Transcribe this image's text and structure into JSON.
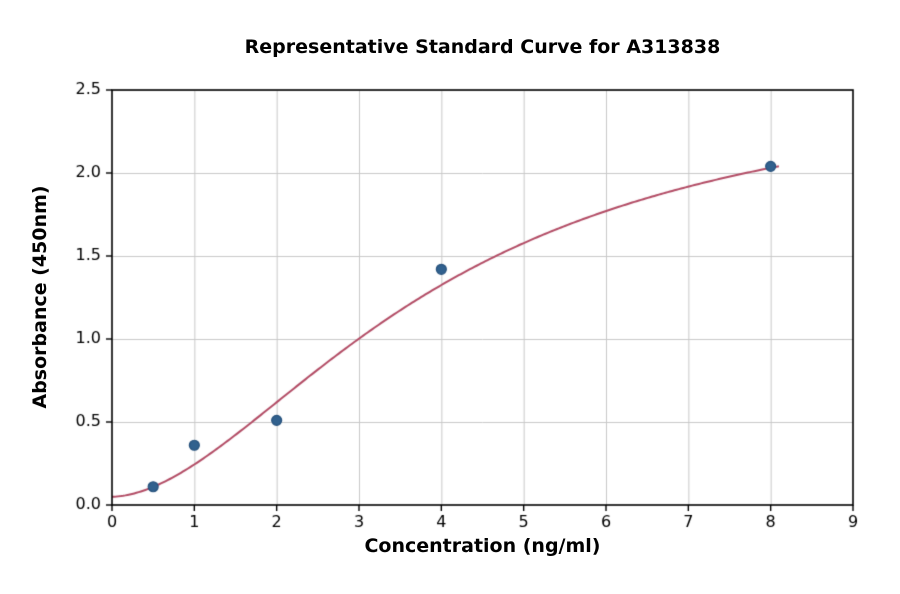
{
  "chart_data": {
    "type": "scatter",
    "title": "Representative Standard Curve for A313838",
    "xlabel": "Concentration (ng/ml)",
    "ylabel": "Absorbance (450nm)",
    "xlim": [
      0,
      9
    ],
    "ylim": [
      0,
      2.5
    ],
    "xticks": [
      0,
      1,
      2,
      3,
      4,
      5,
      6,
      7,
      8,
      9
    ],
    "xtick_labels": [
      "0",
      "1",
      "2",
      "3",
      "4",
      "5",
      "6",
      "7",
      "8",
      "9"
    ],
    "yticks": [
      0,
      0.5,
      1.0,
      1.5,
      2.0,
      2.5
    ],
    "ytick_labels": [
      "0.0",
      "0.5",
      "1.0",
      "1.5",
      "2.0",
      "2.5"
    ],
    "grid": true,
    "legend": "none",
    "points": {
      "x": [
        0.5,
        1,
        2,
        4,
        8
      ],
      "y": [
        0.11,
        0.36,
        0.51,
        1.42,
        2.04
      ]
    },
    "fit_curve": {
      "model": "4PL",
      "a": 0.05,
      "b": 1.8,
      "c": 4.0,
      "d": 2.6,
      "x_start": 0,
      "x_end": 8.1
    },
    "colors": {
      "curve": "#b34d66",
      "point_fill": "#31618e",
      "point_edge": "#26517c",
      "grid": "#c9c9c9",
      "axis": "#000000",
      "background": "#ffffff"
    }
  }
}
